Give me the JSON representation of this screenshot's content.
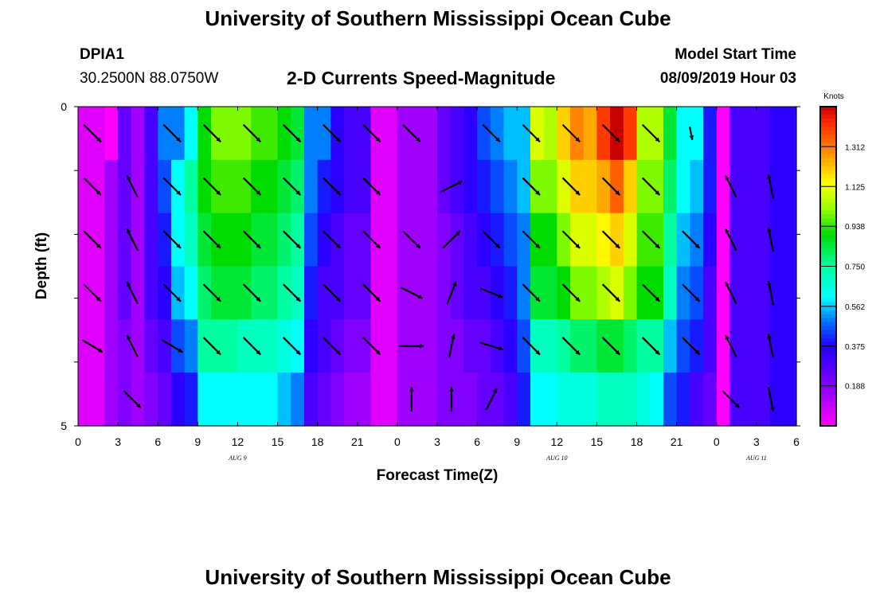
{
  "header": {
    "title_top": "University of Southern Mississippi Ocean Cube",
    "title_bottom": "University of Southern Mississippi Ocean Cube",
    "station": "DPIA1",
    "location": "30.2500N 88.0750W",
    "subtitle": "2-D Currents Speed-Magnitude",
    "model_start_label": "Model Start Time",
    "model_start_value": "08/09/2019 Hour 03"
  },
  "chart_data": {
    "type": "heatmap",
    "title": "2-D Currents Speed-Magnitude",
    "xlabel": "Forecast Time(Z)",
    "ylabel": "Depth (ft)",
    "x_tick_labels": [
      "0",
      "3",
      "6",
      "9",
      "12",
      "15",
      "18",
      "21",
      "0",
      "3",
      "6",
      "9",
      "12",
      "15",
      "18",
      "21",
      "0",
      "3",
      "6"
    ],
    "date_labels": [
      "AUG 9",
      "AUG 10",
      "AUG 11"
    ],
    "y_tick_labels": [
      "0",
      "5"
    ],
    "ylim": [
      0,
      5
    ],
    "colorbar": {
      "unit": "Knots",
      "tick_labels": [
        "0.188",
        "0.375",
        "0.562",
        "0.750",
        "0.938",
        "1.125",
        "1.312"
      ],
      "range": [
        0,
        1.5
      ]
    },
    "rows": 6,
    "hours": [
      0,
      1,
      2,
      3,
      4,
      5,
      6,
      7,
      8,
      9,
      10,
      11,
      12,
      13,
      14,
      15,
      16,
      17,
      18,
      19,
      20,
      21,
      22,
      23,
      24,
      25,
      26,
      27,
      28,
      29,
      30,
      31,
      32,
      33,
      34,
      35,
      36,
      37,
      38,
      39,
      40,
      41,
      42,
      43,
      44,
      45,
      46,
      47,
      48,
      49,
      50,
      51,
      52,
      53,
      54
    ],
    "speed_knots": [
      [
        0.05,
        0.05,
        0.0,
        0.25,
        0.15,
        0.3,
        0.5,
        0.5,
        0.6,
        0.9,
        1.0,
        1.0,
        1.0,
        0.95,
        0.95,
        0.9,
        0.85,
        0.5,
        0.5,
        0.35,
        0.3,
        0.3,
        0.05,
        0.05,
        0.15,
        0.15,
        0.15,
        0.25,
        0.3,
        0.35,
        0.45,
        0.5,
        0.55,
        0.55,
        1.1,
        1.05,
        1.2,
        1.3,
        1.25,
        1.4,
        1.5,
        1.4,
        1.05,
        1.05,
        0.85,
        0.6,
        0.6,
        0.4,
        0.0,
        0.3,
        0.3,
        0.3,
        0.35,
        0.35,
        0.35
      ],
      [
        0.05,
        0.05,
        0.15,
        0.25,
        0.15,
        0.3,
        0.45,
        0.6,
        0.75,
        0.9,
        0.95,
        0.95,
        0.95,
        0.9,
        0.9,
        0.85,
        0.8,
        0.5,
        0.4,
        0.35,
        0.3,
        0.3,
        0.05,
        0.05,
        0.15,
        0.15,
        0.15,
        0.25,
        0.3,
        0.35,
        0.4,
        0.45,
        0.5,
        0.55,
        1.0,
        1.0,
        1.1,
        1.2,
        1.2,
        1.25,
        1.35,
        1.2,
        1.0,
        1.0,
        0.8,
        0.6,
        0.55,
        0.4,
        0.0,
        0.3,
        0.3,
        0.3,
        0.35,
        0.35,
        0.35
      ],
      [
        0.05,
        0.05,
        0.15,
        0.25,
        0.15,
        0.3,
        0.4,
        0.6,
        0.7,
        0.85,
        0.9,
        0.9,
        0.9,
        0.85,
        0.85,
        0.8,
        0.75,
        0.45,
        0.35,
        0.3,
        0.25,
        0.25,
        0.05,
        0.05,
        0.15,
        0.15,
        0.15,
        0.2,
        0.25,
        0.3,
        0.35,
        0.4,
        0.45,
        0.5,
        0.9,
        0.9,
        1.0,
        1.1,
        1.1,
        1.15,
        1.2,
        1.1,
        0.95,
        0.95,
        0.75,
        0.55,
        0.5,
        0.35,
        0.0,
        0.3,
        0.3,
        0.3,
        0.35,
        0.35,
        0.35
      ],
      [
        0.05,
        0.05,
        0.15,
        0.25,
        0.15,
        0.3,
        0.35,
        0.55,
        0.6,
        0.8,
        0.85,
        0.85,
        0.85,
        0.8,
        0.8,
        0.75,
        0.7,
        0.4,
        0.3,
        0.3,
        0.25,
        0.25,
        0.05,
        0.05,
        0.15,
        0.15,
        0.15,
        0.2,
        0.25,
        0.3,
        0.3,
        0.35,
        0.4,
        0.5,
        0.85,
        0.85,
        0.9,
        1.0,
        1.0,
        1.05,
        1.1,
        1.0,
        0.9,
        0.9,
        0.7,
        0.5,
        0.45,
        0.3,
        0.0,
        0.3,
        0.3,
        0.3,
        0.35,
        0.35,
        0.35
      ],
      [
        0.05,
        0.05,
        0.15,
        0.2,
        0.15,
        0.25,
        0.3,
        0.45,
        0.5,
        0.75,
        0.75,
        0.75,
        0.7,
        0.7,
        0.7,
        0.65,
        0.6,
        0.35,
        0.3,
        0.25,
        0.2,
        0.2,
        0.05,
        0.05,
        0.15,
        0.15,
        0.15,
        0.2,
        0.2,
        0.25,
        0.25,
        0.3,
        0.35,
        0.45,
        0.7,
        0.7,
        0.75,
        0.8,
        0.8,
        0.85,
        0.85,
        0.8,
        0.75,
        0.75,
        0.55,
        0.45,
        0.4,
        0.3,
        0.0,
        0.3,
        0.3,
        0.3,
        0.35,
        0.35,
        0.35
      ],
      [
        0.05,
        0.05,
        0.15,
        0.2,
        0.15,
        0.2,
        0.25,
        0.35,
        0.4,
        0.6,
        0.6,
        0.6,
        0.6,
        0.6,
        0.6,
        0.55,
        0.5,
        0.3,
        0.25,
        0.2,
        0.15,
        0.15,
        0.05,
        0.05,
        0.15,
        0.15,
        0.15,
        0.2,
        0.2,
        0.2,
        0.25,
        0.25,
        0.3,
        0.4,
        0.6,
        0.6,
        0.65,
        0.65,
        0.65,
        0.7,
        0.7,
        0.7,
        0.65,
        0.6,
        0.45,
        0.4,
        0.3,
        0.25,
        0.0,
        0.3,
        0.3,
        0.3,
        0.35,
        0.35,
        0.35
      ]
    ],
    "vectors": [
      {
        "hour": 0,
        "row": 0,
        "dir": [
          1,
          1
        ],
        "len": 0.9
      },
      {
        "hour": 6,
        "row": 0,
        "dir": [
          1,
          1
        ],
        "len": 0.9
      },
      {
        "hour": 9,
        "row": 0,
        "dir": [
          1,
          1
        ],
        "len": 0.9
      },
      {
        "hour": 12,
        "row": 0,
        "dir": [
          1,
          1
        ],
        "len": 0.9
      },
      {
        "hour": 15,
        "row": 0,
        "dir": [
          1,
          1
        ],
        "len": 0.9
      },
      {
        "hour": 18,
        "row": 0,
        "dir": [
          1,
          1
        ],
        "len": 0.9
      },
      {
        "hour": 21,
        "row": 0,
        "dir": [
          1,
          1
        ],
        "len": 0.9
      },
      {
        "hour": 24,
        "row": 0,
        "dir": [
          1,
          1
        ],
        "len": 0.9
      },
      {
        "hour": 30,
        "row": 0,
        "dir": [
          1,
          1
        ],
        "len": 0.9
      },
      {
        "hour": 33,
        "row": 0,
        "dir": [
          1,
          1
        ],
        "len": 0.9
      },
      {
        "hour": 36,
        "row": 0,
        "dir": [
          1,
          1
        ],
        "len": 0.9
      },
      {
        "hour": 39,
        "row": 0,
        "dir": [
          1,
          1
        ],
        "len": 0.9
      },
      {
        "hour": 42,
        "row": 0,
        "dir": [
          1,
          1
        ],
        "len": 0.9
      },
      {
        "hour": 45,
        "row": 0,
        "dir": [
          0.2,
          1
        ],
        "len": 0.5
      },
      {
        "hour": 0,
        "row": 1,
        "dir": [
          1,
          1
        ],
        "len": 0.9
      },
      {
        "hour": 3,
        "row": 1,
        "dir": [
          -0.5,
          -1
        ],
        "len": 0.9
      },
      {
        "hour": 6,
        "row": 1,
        "dir": [
          1,
          1
        ],
        "len": 0.9
      },
      {
        "hour": 9,
        "row": 1,
        "dir": [
          1,
          1
        ],
        "len": 0.9
      },
      {
        "hour": 12,
        "row": 1,
        "dir": [
          1,
          1
        ],
        "len": 0.9
      },
      {
        "hour": 15,
        "row": 1,
        "dir": [
          1,
          1
        ],
        "len": 0.9
      },
      {
        "hour": 18,
        "row": 1,
        "dir": [
          1,
          1
        ],
        "len": 0.9
      },
      {
        "hour": 21,
        "row": 1,
        "dir": [
          1,
          1
        ],
        "len": 0.9
      },
      {
        "hour": 27,
        "row": 1,
        "dir": [
          1,
          -0.5
        ],
        "len": 0.9
      },
      {
        "hour": 33,
        "row": 1,
        "dir": [
          1,
          1
        ],
        "len": 0.9
      },
      {
        "hour": 36,
        "row": 1,
        "dir": [
          1,
          1
        ],
        "len": 0.9
      },
      {
        "hour": 39,
        "row": 1,
        "dir": [
          1,
          1
        ],
        "len": 0.9
      },
      {
        "hour": 42,
        "row": 1,
        "dir": [
          1,
          1
        ],
        "len": 0.9
      },
      {
        "hour": 48,
        "row": 1,
        "dir": [
          -0.5,
          -1
        ],
        "len": 0.9
      },
      {
        "hour": 51,
        "row": 1,
        "dir": [
          -0.2,
          -1
        ],
        "len": 0.9
      },
      {
        "hour": 0,
        "row": 2,
        "dir": [
          1,
          1
        ],
        "len": 0.9
      },
      {
        "hour": 3,
        "row": 2,
        "dir": [
          -0.5,
          -1
        ],
        "len": 0.9
      },
      {
        "hour": 6,
        "row": 2,
        "dir": [
          1,
          1
        ],
        "len": 0.9
      },
      {
        "hour": 9,
        "row": 2,
        "dir": [
          1,
          1
        ],
        "len": 0.9
      },
      {
        "hour": 12,
        "row": 2,
        "dir": [
          1,
          1
        ],
        "len": 0.9
      },
      {
        "hour": 15,
        "row": 2,
        "dir": [
          1,
          1
        ],
        "len": 0.9
      },
      {
        "hour": 18,
        "row": 2,
        "dir": [
          1,
          1
        ],
        "len": 0.9
      },
      {
        "hour": 21,
        "row": 2,
        "dir": [
          1,
          1
        ],
        "len": 0.9
      },
      {
        "hour": 24,
        "row": 2,
        "dir": [
          1,
          1
        ],
        "len": 0.9
      },
      {
        "hour": 27,
        "row": 2,
        "dir": [
          1,
          -1
        ],
        "len": 0.9
      },
      {
        "hour": 30,
        "row": 2,
        "dir": [
          1,
          1
        ],
        "len": 0.9
      },
      {
        "hour": 33,
        "row": 2,
        "dir": [
          1,
          1
        ],
        "len": 0.9
      },
      {
        "hour": 36,
        "row": 2,
        "dir": [
          1,
          1
        ],
        "len": 0.9
      },
      {
        "hour": 39,
        "row": 2,
        "dir": [
          1,
          1
        ],
        "len": 0.9
      },
      {
        "hour": 42,
        "row": 2,
        "dir": [
          1,
          1
        ],
        "len": 0.9
      },
      {
        "hour": 45,
        "row": 2,
        "dir": [
          1,
          1
        ],
        "len": 0.9
      },
      {
        "hour": 48,
        "row": 2,
        "dir": [
          -0.5,
          -1
        ],
        "len": 0.9
      },
      {
        "hour": 51,
        "row": 2,
        "dir": [
          -0.2,
          -1
        ],
        "len": 0.9
      },
      {
        "hour": 0,
        "row": 3,
        "dir": [
          1,
          1
        ],
        "len": 0.9
      },
      {
        "hour": 3,
        "row": 3,
        "dir": [
          -0.5,
          -1
        ],
        "len": 0.9
      },
      {
        "hour": 6,
        "row": 3,
        "dir": [
          1,
          1
        ],
        "len": 0.9
      },
      {
        "hour": 9,
        "row": 3,
        "dir": [
          1,
          1
        ],
        "len": 0.9
      },
      {
        "hour": 12,
        "row": 3,
        "dir": [
          1,
          1
        ],
        "len": 0.9
      },
      {
        "hour": 15,
        "row": 3,
        "dir": [
          1,
          1
        ],
        "len": 0.9
      },
      {
        "hour": 18,
        "row": 3,
        "dir": [
          1,
          1
        ],
        "len": 0.9
      },
      {
        "hour": 21,
        "row": 3,
        "dir": [
          1,
          1
        ],
        "len": 0.9
      },
      {
        "hour": 24,
        "row": 3,
        "dir": [
          1,
          0.5
        ],
        "len": 0.9
      },
      {
        "hour": 27,
        "row": 3,
        "dir": [
          0.4,
          -1
        ],
        "len": 0.9
      },
      {
        "hour": 30,
        "row": 3,
        "dir": [
          1,
          0.4
        ],
        "len": 0.9
      },
      {
        "hour": 33,
        "row": 3,
        "dir": [
          1,
          1
        ],
        "len": 0.9
      },
      {
        "hour": 36,
        "row": 3,
        "dir": [
          1,
          1
        ],
        "len": 0.9
      },
      {
        "hour": 39,
        "row": 3,
        "dir": [
          1,
          1
        ],
        "len": 0.9
      },
      {
        "hour": 42,
        "row": 3,
        "dir": [
          1,
          1
        ],
        "len": 0.9
      },
      {
        "hour": 45,
        "row": 3,
        "dir": [
          1,
          1
        ],
        "len": 0.9
      },
      {
        "hour": 48,
        "row": 3,
        "dir": [
          -0.5,
          -1
        ],
        "len": 0.9
      },
      {
        "hour": 51,
        "row": 3,
        "dir": [
          -0.2,
          -1
        ],
        "len": 0.9
      },
      {
        "hour": 0,
        "row": 4,
        "dir": [
          1,
          0.6
        ],
        "len": 0.9
      },
      {
        "hour": 3,
        "row": 4,
        "dir": [
          -0.5,
          -1
        ],
        "len": 0.9
      },
      {
        "hour": 6,
        "row": 4,
        "dir": [
          1,
          0.6
        ],
        "len": 0.9
      },
      {
        "hour": 9,
        "row": 4,
        "dir": [
          1,
          1
        ],
        "len": 0.9
      },
      {
        "hour": 12,
        "row": 4,
        "dir": [
          1,
          1
        ],
        "len": 0.9
      },
      {
        "hour": 15,
        "row": 4,
        "dir": [
          1,
          1
        ],
        "len": 0.9
      },
      {
        "hour": 18,
        "row": 4,
        "dir": [
          1,
          1
        ],
        "len": 0.9
      },
      {
        "hour": 21,
        "row": 4,
        "dir": [
          1,
          1
        ],
        "len": 0.9
      },
      {
        "hour": 24,
        "row": 4,
        "dir": [
          1,
          0
        ],
        "len": 0.9
      },
      {
        "hour": 27,
        "row": 4,
        "dir": [
          0.2,
          -1
        ],
        "len": 0.9
      },
      {
        "hour": 30,
        "row": 4,
        "dir": [
          1,
          0.3
        ],
        "len": 0.9
      },
      {
        "hour": 33,
        "row": 4,
        "dir": [
          1,
          1
        ],
        "len": 0.9
      },
      {
        "hour": 36,
        "row": 4,
        "dir": [
          1,
          1
        ],
        "len": 0.9
      },
      {
        "hour": 39,
        "row": 4,
        "dir": [
          1,
          1
        ],
        "len": 0.9
      },
      {
        "hour": 42,
        "row": 4,
        "dir": [
          1,
          1
        ],
        "len": 0.9
      },
      {
        "hour": 45,
        "row": 4,
        "dir": [
          1,
          1
        ],
        "len": 0.9
      },
      {
        "hour": 48,
        "row": 4,
        "dir": [
          -0.5,
          -1
        ],
        "len": 0.9
      },
      {
        "hour": 51,
        "row": 4,
        "dir": [
          -0.2,
          -1
        ],
        "len": 0.9
      },
      {
        "hour": 3,
        "row": 5,
        "dir": [
          1,
          1
        ],
        "len": 0.9
      },
      {
        "hour": 24,
        "row": 5,
        "dir": [
          0,
          -1
        ],
        "len": 0.9
      },
      {
        "hour": 27,
        "row": 5,
        "dir": [
          0,
          -1
        ],
        "len": 0.9
      },
      {
        "hour": 30,
        "row": 5,
        "dir": [
          0.5,
          -1
        ],
        "len": 0.9
      },
      {
        "hour": 48,
        "row": 5,
        "dir": [
          1,
          1
        ],
        "len": 0.9
      },
      {
        "hour": 51,
        "row": 5,
        "dir": [
          0.2,
          1
        ],
        "len": 0.9
      }
    ]
  }
}
